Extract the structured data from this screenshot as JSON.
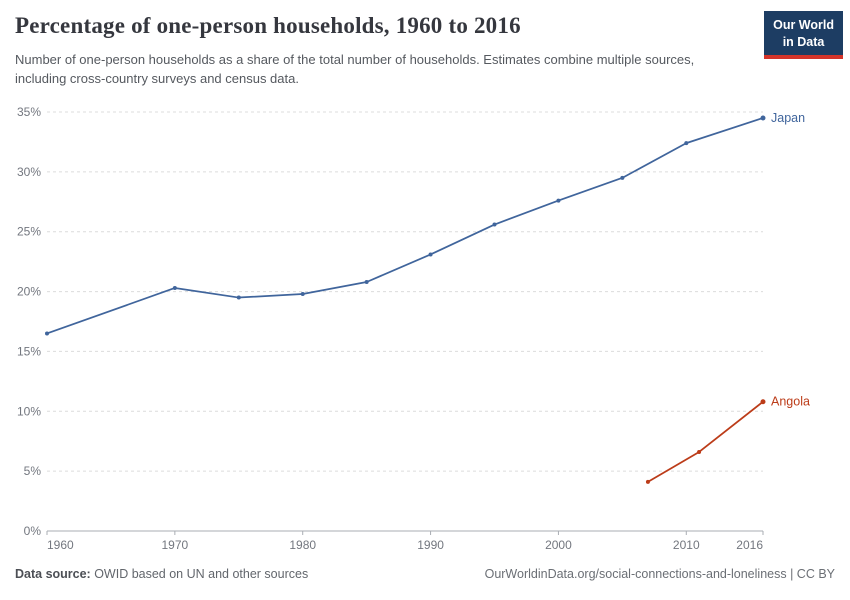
{
  "header": {
    "title": "Percentage of one-person households, 1960 to 2016",
    "subtitle": "Number of one-person households as a share of the total number of households. Estimates combine multiple sources, including cross-country surveys and census data.",
    "logo": {
      "line1": "Our World",
      "line2": "in Data",
      "bg_color": "#1d3d63",
      "bar_color": "#d4342a"
    }
  },
  "chart_data": {
    "type": "line",
    "title": "Percentage of one-person households, 1960 to 2016",
    "xlabel": "",
    "ylabel": "",
    "x_ticks": [
      1960,
      1970,
      1980,
      1990,
      2000,
      2010,
      2016
    ],
    "x_range": [
      1960,
      2016
    ],
    "y_ticks": [
      0,
      5,
      10,
      15,
      20,
      25,
      30,
      35
    ],
    "y_tick_suffix": "%",
    "y_range": [
      0,
      35
    ],
    "grid": "dashed-horizontal",
    "legend_position": "end-of-line-labels",
    "colors": {
      "grid": "#dcdcdc",
      "axis": "#a9adb3",
      "tick_label": "#73777f"
    },
    "series": [
      {
        "name": "Japan",
        "color": "#40659c",
        "points": [
          [
            1960,
            16.5
          ],
          [
            1970,
            20.3
          ],
          [
            1975,
            19.5
          ],
          [
            1980,
            19.8
          ],
          [
            1985,
            20.8
          ],
          [
            1990,
            23.1
          ],
          [
            1995,
            25.6
          ],
          [
            2000,
            27.6
          ],
          [
            2005,
            29.5
          ],
          [
            2010,
            32.4
          ],
          [
            2016,
            34.5
          ]
        ]
      },
      {
        "name": "Angola",
        "color": "#bc3c19",
        "points": [
          [
            2007,
            4.1
          ],
          [
            2011,
            6.6
          ],
          [
            2016,
            10.8
          ]
        ]
      }
    ]
  },
  "footer": {
    "source_label": "Data source:",
    "source_text": " OWID based on UN and other sources",
    "right_text": "OurWorldinData.org/social-connections-and-loneliness | CC BY"
  }
}
